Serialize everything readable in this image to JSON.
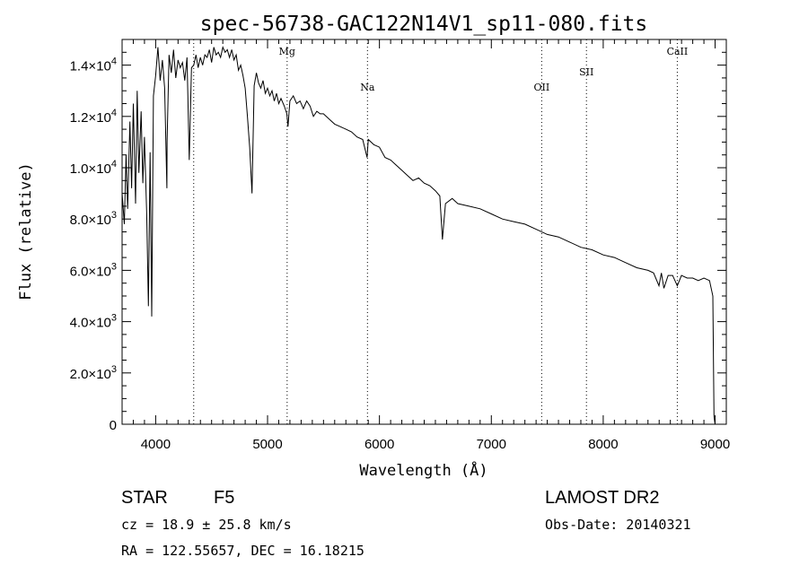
{
  "chart_data": {
    "type": "line",
    "title": "spec-56738-GAC122N14V1_sp11-080.fits",
    "xlabel": "Wavelength (Å)",
    "ylabel": "Flux (relative)",
    "xlim": [
      3700,
      9100
    ],
    "ylim": [
      0,
      15000
    ],
    "x_ticks": [
      {
        "value": 4000,
        "label": "4000"
      },
      {
        "value": 5000,
        "label": "5000"
      },
      {
        "value": 6000,
        "label": "6000"
      },
      {
        "value": 7000,
        "label": "7000"
      },
      {
        "value": 8000,
        "label": "8000"
      },
      {
        "value": 9000,
        "label": "9000"
      }
    ],
    "y_ticks": [
      {
        "value": 0,
        "mant": "0",
        "exp": ""
      },
      {
        "value": 2000,
        "mant": "2.0×10",
        "exp": "3"
      },
      {
        "value": 4000,
        "mant": "4.0×10",
        "exp": "3"
      },
      {
        "value": 6000,
        "mant": "6.0×10",
        "exp": "3"
      },
      {
        "value": 8000,
        "mant": "8.0×10",
        "exp": "3"
      },
      {
        "value": 10000,
        "mant": "1.0×10",
        "exp": "4"
      },
      {
        "value": 12000,
        "mant": "1.2×10",
        "exp": "4"
      },
      {
        "value": 14000,
        "mant": "1.4×10",
        "exp": "4"
      }
    ],
    "grid": false,
    "series": [
      {
        "x": [
          3700,
          3720,
          3735,
          3750,
          3770,
          3785,
          3800,
          3820,
          3835,
          3850,
          3870,
          3885,
          3900,
          3920,
          3935,
          3950,
          3965,
          3980,
          4000,
          4020,
          4040,
          4060,
          4080,
          4100,
          4102,
          4120,
          4140,
          4160,
          4180,
          4200,
          4220,
          4240,
          4260,
          4280,
          4300,
          4320,
          4340,
          4360,
          4380,
          4400,
          4420,
          4440,
          4460,
          4480,
          4500,
          4520,
          4540,
          4560,
          4580,
          4600,
          4620,
          4640,
          4660,
          4680,
          4700,
          4720,
          4740,
          4760,
          4780,
          4800,
          4820,
          4840,
          4861,
          4880,
          4900,
          4920,
          4940,
          4960,
          4980,
          5000,
          5020,
          5040,
          5060,
          5080,
          5100,
          5120,
          5150,
          5172,
          5183,
          5200,
          5230,
          5260,
          5290,
          5320,
          5350,
          5380,
          5410,
          5440,
          5470,
          5500,
          5550,
          5600,
          5650,
          5700,
          5750,
          5800,
          5850,
          5890,
          5900,
          5950,
          6000,
          6050,
          6100,
          6150,
          6200,
          6250,
          6300,
          6350,
          6400,
          6450,
          6500,
          6540,
          6563,
          6590,
          6650,
          6700,
          6800,
          6900,
          7000,
          7100,
          7200,
          7300,
          7400,
          7500,
          7600,
          7700,
          7800,
          7900,
          8000,
          8100,
          8200,
          8300,
          8400,
          8450,
          8498,
          8520,
          8542,
          8580,
          8620,
          8662,
          8700,
          8750,
          8800,
          8850,
          8900,
          8950,
          8980,
          8990,
          9000
        ],
        "y": [
          9000,
          7800,
          10500,
          8400,
          11800,
          9200,
          12500,
          8600,
          13000,
          9800,
          12200,
          9400,
          11200,
          8200,
          4600,
          10600,
          4200,
          12800,
          13600,
          14700,
          13400,
          14200,
          13100,
          9200,
          11000,
          14400,
          13700,
          14600,
          13500,
          14200,
          13900,
          14100,
          13400,
          14300,
          10300,
          13900,
          14000,
          14400,
          13900,
          14300,
          14000,
          14400,
          14300,
          14600,
          14100,
          14700,
          14400,
          14500,
          14300,
          14700,
          14500,
          14600,
          14300,
          14600,
          14200,
          14400,
          13800,
          14000,
          13600,
          13100,
          12000,
          10800,
          9000,
          13200,
          13700,
          13300,
          13100,
          13400,
          12900,
          13100,
          12800,
          13000,
          12600,
          12900,
          12500,
          12700,
          12400,
          12100,
          11600,
          12600,
          12800,
          12500,
          12600,
          12300,
          12600,
          12400,
          12000,
          12200,
          12100,
          12100,
          11900,
          11700,
          11600,
          11500,
          11400,
          11200,
          11100,
          10400,
          11100,
          10900,
          10800,
          10400,
          10300,
          10100,
          9900,
          9700,
          9500,
          9600,
          9400,
          9300,
          9100,
          8900,
          7200,
          8600,
          8800,
          8600,
          8500,
          8400,
          8200,
          8000,
          7900,
          7800,
          7600,
          7400,
          7300,
          7100,
          6900,
          6800,
          6600,
          6500,
          6300,
          6100,
          6000,
          5900,
          5400,
          5900,
          5300,
          5800,
          5800,
          5400,
          5800,
          5700,
          5700,
          5600,
          5700,
          5600,
          5000,
          300,
          0
        ]
      }
    ],
    "annotations": [
      {
        "label": "Mg",
        "x": 5175,
        "y": 14400
      },
      {
        "label": "Na",
        "x": 5893,
        "y": 13000
      },
      {
        "label": "OII",
        "x": 7450,
        "y": 13000
      },
      {
        "label": "SII",
        "x": 7850,
        "y": 13600
      },
      {
        "label": "CaII",
        "x": 8662,
        "y": 14400
      }
    ],
    "markers": [
      4340,
      5175,
      5893,
      7450,
      7850,
      8662
    ]
  },
  "info": {
    "object_type": "STAR",
    "subclass": "F5",
    "survey": "LAMOST DR2",
    "cz": "cz = 18.9 ± 25.8 km/s",
    "obs_date": "Obs-Date: 20140321",
    "radec": "RA = 122.55657, DEC =  16.18215"
  }
}
